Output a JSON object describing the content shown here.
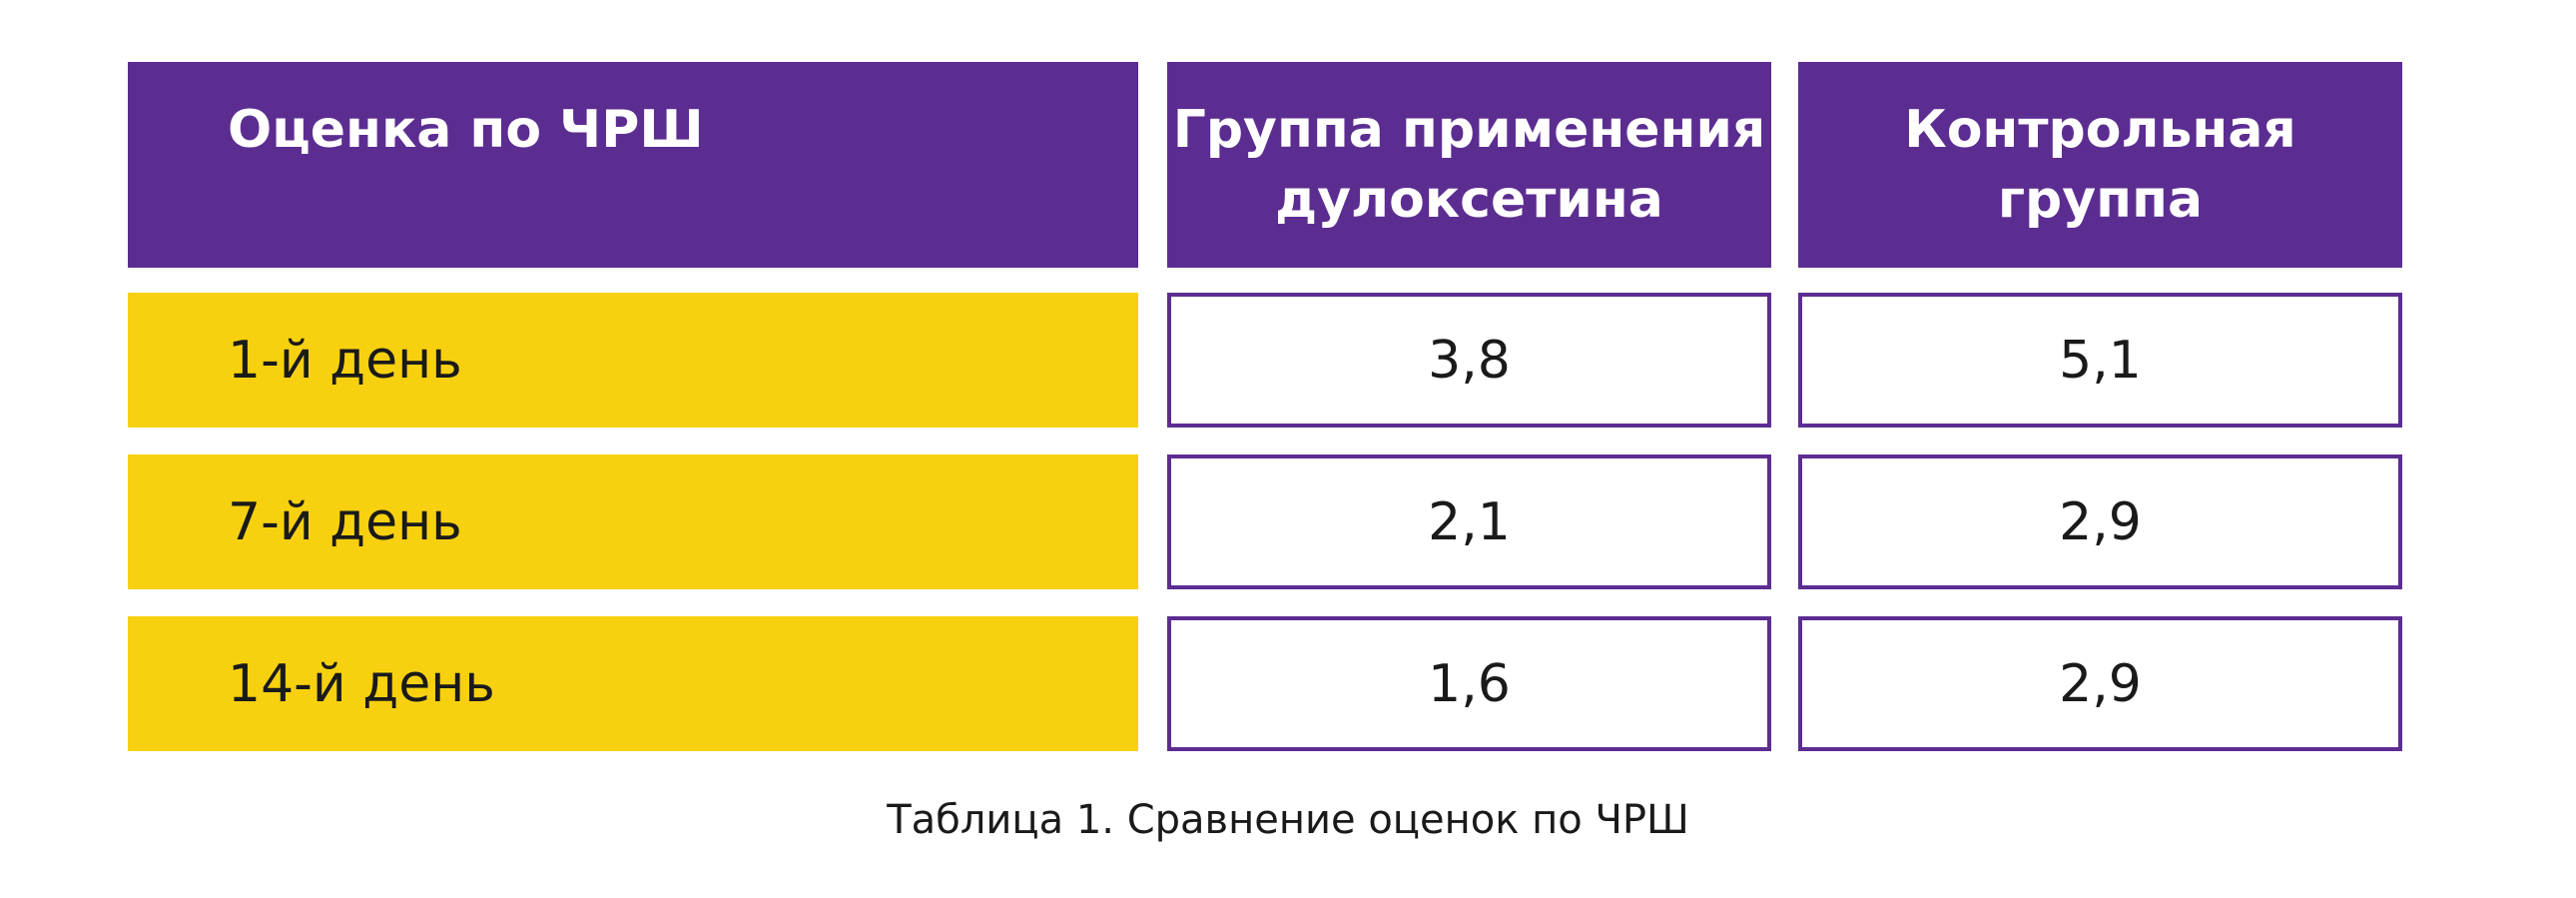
{
  "colors": {
    "header_bg": "#5c2d91",
    "label_bg": "#f7d10f",
    "border": "#5c2d91"
  },
  "chart_data": {
    "type": "table",
    "title": "Таблица 1. Сравнение оценок по ЧРШ",
    "columns": [
      "Оценка по ЧРШ",
      "Группа применения дулоксетина",
      "Контрольная группа"
    ],
    "column_lines": [
      [
        "Оценка по ЧРШ"
      ],
      [
        "Группа применения",
        "дулоксетина"
      ],
      [
        "Контрольная",
        "группа"
      ]
    ],
    "rows": [
      [
        "1-й день",
        "3,8",
        "5,1"
      ],
      [
        "7-й день",
        "2,1",
        "2,9"
      ],
      [
        "14-й день",
        "1,6",
        "2,9"
      ]
    ]
  }
}
